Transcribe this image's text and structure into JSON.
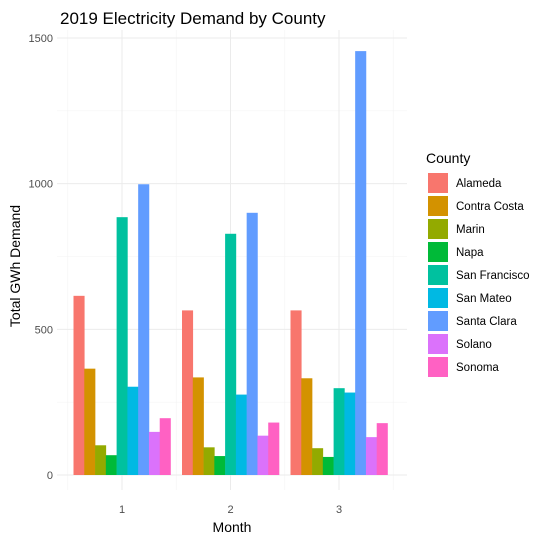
{
  "chart_data": {
    "type": "bar",
    "title": "2019 Electricity Demand by County",
    "xlabel": "Month",
    "ylabel": "Total GWh Demand",
    "categories": [
      "1",
      "2",
      "3"
    ],
    "yticks": [
      0,
      500,
      1000,
      1500
    ],
    "ylim": [
      0,
      1500
    ],
    "legend_title": "County",
    "legend_position": "right",
    "grid": true,
    "series": [
      {
        "name": "Alameda",
        "color": "#F8766D",
        "values": [
          615,
          565,
          565
        ]
      },
      {
        "name": "Contra Costa",
        "color": "#D39200",
        "values": [
          365,
          335,
          332
        ]
      },
      {
        "name": "Marin",
        "color": "#93AA00",
        "values": [
          102,
          95,
          92
        ]
      },
      {
        "name": "Napa",
        "color": "#00BA38",
        "values": [
          68,
          65,
          62
        ]
      },
      {
        "name": "San Francisco",
        "color": "#00C19F",
        "values": [
          885,
          828,
          298
        ]
      },
      {
        "name": "San Mateo",
        "color": "#00B9E3",
        "values": [
          303,
          276,
          283
        ]
      },
      {
        "name": "Santa Clara",
        "color": "#619CFF",
        "values": [
          998,
          900,
          1455
        ]
      },
      {
        "name": "Solano",
        "color": "#DB72FB",
        "values": [
          148,
          135,
          130
        ]
      },
      {
        "name": "Sonoma",
        "color": "#FF61C3",
        "values": [
          195,
          180,
          178
        ]
      }
    ]
  }
}
